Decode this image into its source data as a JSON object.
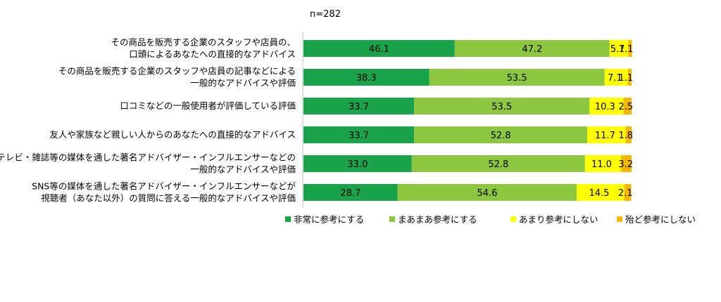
{
  "chart_data": {
    "type": "bar",
    "orientation": "horizontal",
    "stacked": true,
    "sample_label": "n=282",
    "categories": [
      [
        "その商品を販売する企業のスタッフや店員の、",
        "口頭によるあなたへの直接的なアドバイス"
      ],
      [
        "その商品を販売する企業のスタッフや店員の記事などによる",
        "一般的なアドバイスや評価"
      ],
      [
        "口コミなどの一般使用者が評価している評価"
      ],
      [
        "友人や家族など親しい人からのあなたへの直接的なアドバイス"
      ],
      [
        "テレビ・雑誌等の媒体を通した著名アドバイザー・インフルエンサーなどの",
        "一般的なアドバイスや評価"
      ],
      [
        "SNS等の媒体を通した著名アドバイザー・インフルエンサーなどが",
        "視聴者（あなた以外）の質問に答える一般的なアドバイスや評価"
      ]
    ],
    "series": [
      {
        "name": "非常に参考にする",
        "color": "#1aa34a",
        "values": [
          46.1,
          38.3,
          33.7,
          33.7,
          33.0,
          28.7
        ]
      },
      {
        "name": "まあまあ参考にする",
        "color": "#8dc73f",
        "values": [
          47.2,
          53.5,
          53.5,
          52.8,
          52.8,
          54.6
        ]
      },
      {
        "name": "あまり参考にしない",
        "color": "#ffff00",
        "values": [
          5.7,
          7.1,
          10.3,
          11.7,
          11.0,
          14.5
        ]
      },
      {
        "name": "殆ど参考にしない",
        "color": "#f5b800",
        "values": [
          1.1,
          1.1,
          2.5,
          1.8,
          3.2,
          2.1
        ]
      }
    ],
    "value_labels": [
      [
        "46.1",
        "38.3",
        "33.7",
        "33.7",
        "33.0",
        "28.7"
      ],
      [
        "47.2",
        "53.5",
        "53.5",
        "52.8",
        "52.8",
        "54.6"
      ],
      [
        "5.7",
        "7.1",
        "10.3",
        "11.7",
        "11.0",
        "14.5"
      ],
      [
        "1.1",
        "1.1",
        "2.5",
        "1.8",
        "3.2",
        "2.1"
      ]
    ],
    "xlim": [
      0,
      100
    ],
    "legend_position": "bottom",
    "grid": false
  }
}
